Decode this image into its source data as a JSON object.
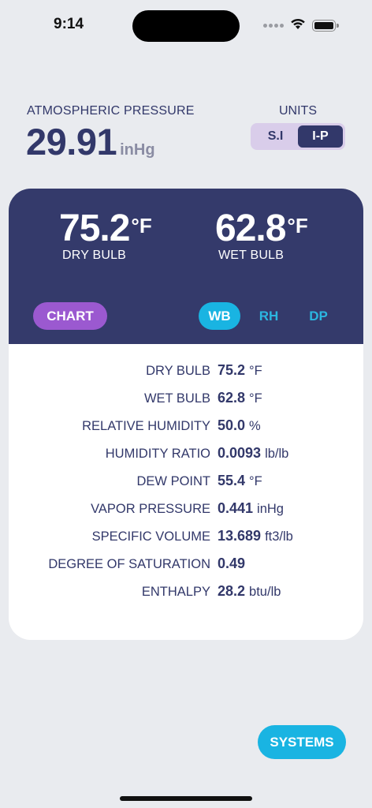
{
  "status_bar": {
    "time": "9:14"
  },
  "pressure": {
    "label": "ATMOSPHERIC PRESSURE",
    "value": "29.91",
    "unit": "inHg"
  },
  "units": {
    "label": "UNITS",
    "options": [
      "S.I",
      "I-P"
    ],
    "selected": "I-P"
  },
  "readings": {
    "dry_bulb": {
      "value": "75.2",
      "unit": "°F",
      "caption": "DRY BULB"
    },
    "wet_bulb": {
      "value": "62.8",
      "unit": "°F",
      "caption": "WET BULB"
    }
  },
  "actions": {
    "chart_label": "CHART",
    "modes": [
      "WB",
      "RH",
      "DP"
    ],
    "selected_mode": "WB",
    "systems_label": "SYSTEMS"
  },
  "properties": [
    {
      "name": "DRY BULB",
      "value": "75.2",
      "unit": "°F"
    },
    {
      "name": "WET BULB",
      "value": "62.8",
      "unit": "°F"
    },
    {
      "name": "RELATIVE HUMIDITY",
      "value": "50.0",
      "unit": "%"
    },
    {
      "name": "HUMIDITY RATIO",
      "value": "0.0093",
      "unit": "lb/lb"
    },
    {
      "name": "DEW POINT",
      "value": "55.4",
      "unit": "°F"
    },
    {
      "name": "VAPOR PRESSURE",
      "value": "0.441",
      "unit": "inHg"
    },
    {
      "name": "SPECIFIC VOLUME",
      "value": "13.689",
      "unit": "ft3/lb"
    },
    {
      "name": "DEGREE OF SATURATION",
      "value": "0.49",
      "unit": ""
    },
    {
      "name": "ENTHALPY",
      "value": "28.2",
      "unit": "btu/lb"
    }
  ],
  "colors": {
    "navy": "#343a6b",
    "accent_cyan": "#19b4e2",
    "accent_purple": "#9b59d0",
    "toggle_bg": "#d9cdea",
    "page_bg": "#e9ebef"
  }
}
